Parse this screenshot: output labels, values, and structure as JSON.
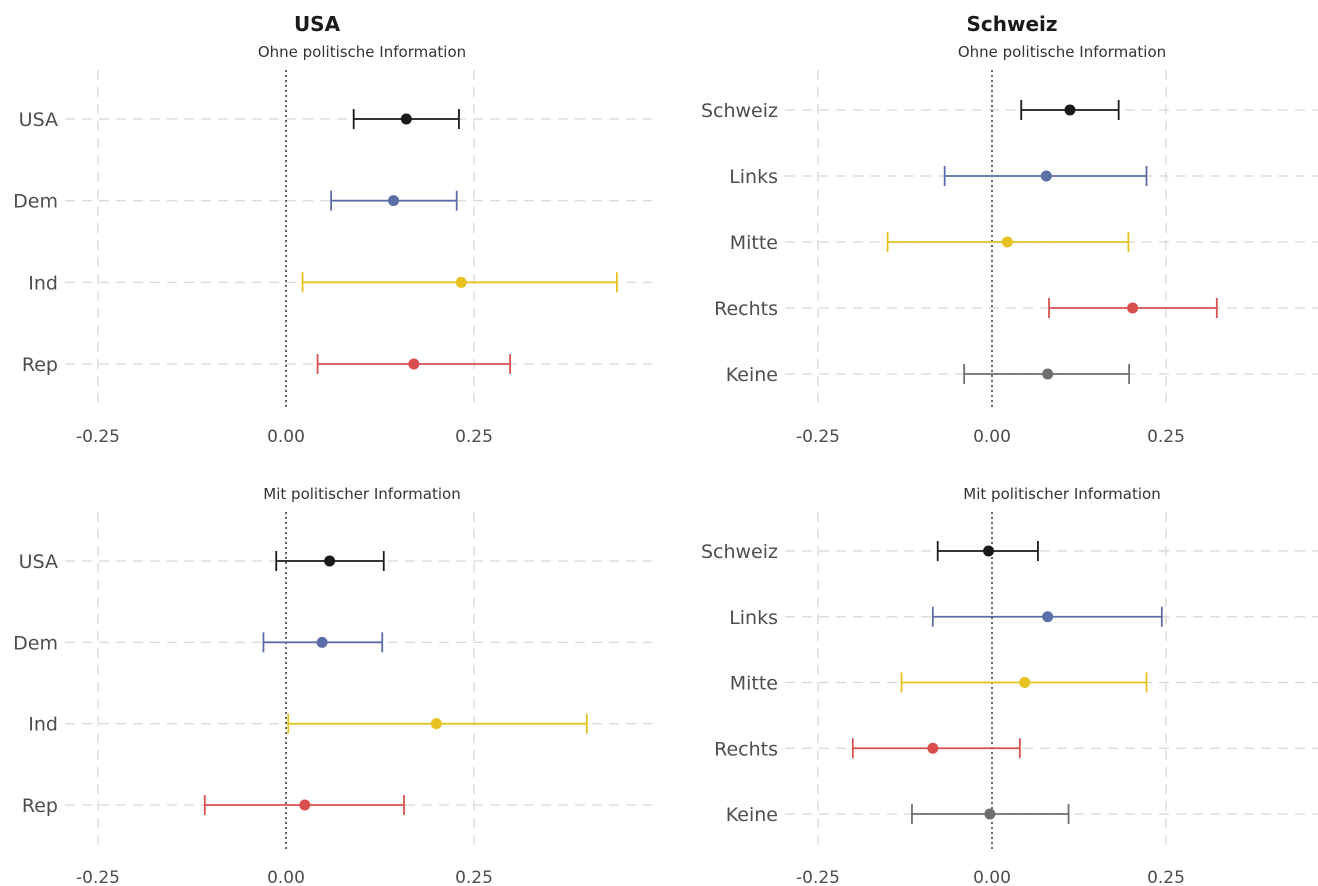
{
  "columns": [
    {
      "title": "USA"
    },
    {
      "title": "Schweiz"
    }
  ],
  "chart_data": [
    {
      "type": "errorbar",
      "column": "USA",
      "title": "Ohne politische Information",
      "categories": [
        "USA",
        "Dem",
        "Ind",
        "Rep"
      ],
      "estimates": [
        0.16,
        0.143,
        0.233,
        0.17
      ],
      "ci_low": [
        0.09,
        0.06,
        0.022,
        0.042
      ],
      "ci_high": [
        0.23,
        0.227,
        0.44,
        0.298
      ],
      "colors": [
        "#1a1a1a",
        "#5b6ea8",
        "#e6c21f",
        "#d94f4f"
      ],
      "xticks": [
        -0.25,
        0.0,
        0.25
      ],
      "xtick_labels": [
        "-0.25",
        "0.00",
        "0.25"
      ],
      "xlim": [
        -0.29,
        0.49
      ],
      "reference_line": 0,
      "grid": true
    },
    {
      "type": "errorbar",
      "column": "Schweiz",
      "title": "Ohne politische Information",
      "categories": [
        "Schweiz",
        "Links",
        "Mitte",
        "Rechts",
        "Keine"
      ],
      "estimates": [
        0.112,
        0.078,
        0.022,
        0.202,
        0.08
      ],
      "ci_low": [
        0.042,
        -0.068,
        -0.15,
        0.082,
        -0.04
      ],
      "ci_high": [
        0.182,
        0.222,
        0.196,
        0.323,
        0.197
      ],
      "colors": [
        "#1a1a1a",
        "#5b6ea8",
        "#e6c21f",
        "#d94f4f",
        "#6e6e6e"
      ],
      "xticks": [
        -0.25,
        0.0,
        0.25
      ],
      "xtick_labels": [
        "-0.25",
        "0.00",
        "0.25"
      ],
      "xlim": [
        -0.29,
        0.47
      ],
      "reference_line": 0,
      "grid": true
    },
    {
      "type": "errorbar",
      "column": "USA",
      "title": "Mit politischer Information",
      "categories": [
        "USA",
        "Dem",
        "Ind",
        "Rep"
      ],
      "estimates": [
        0.058,
        0.048,
        0.2,
        0.025
      ],
      "ci_low": [
        -0.013,
        -0.03,
        0.003,
        -0.108
      ],
      "ci_high": [
        0.13,
        0.128,
        0.4,
        0.157
      ],
      "colors": [
        "#1a1a1a",
        "#5b6ea8",
        "#e6c21f",
        "#d94f4f"
      ],
      "xticks": [
        -0.25,
        0.0,
        0.25
      ],
      "xtick_labels": [
        "-0.25",
        "0.00",
        "0.25"
      ],
      "xlim": [
        -0.29,
        0.49
      ],
      "reference_line": 0,
      "grid": true
    },
    {
      "type": "errorbar",
      "column": "Schweiz",
      "title": "Mit politischer Information",
      "categories": [
        "Schweiz",
        "Links",
        "Mitte",
        "Rechts",
        "Keine"
      ],
      "estimates": [
        -0.005,
        0.08,
        0.047,
        -0.085,
        -0.003
      ],
      "ci_low": [
        -0.078,
        -0.085,
        -0.13,
        -0.2,
        -0.115
      ],
      "ci_high": [
        0.066,
        0.244,
        0.222,
        0.04,
        0.11
      ],
      "colors": [
        "#1a1a1a",
        "#5b6ea8",
        "#e6c21f",
        "#d94f4f",
        "#6e6e6e"
      ],
      "xticks": [
        -0.25,
        0.0,
        0.25
      ],
      "xtick_labels": [
        "-0.25",
        "0.00",
        "0.25"
      ],
      "xlim": [
        -0.29,
        0.47
      ],
      "reference_line": 0,
      "grid": true
    }
  ]
}
